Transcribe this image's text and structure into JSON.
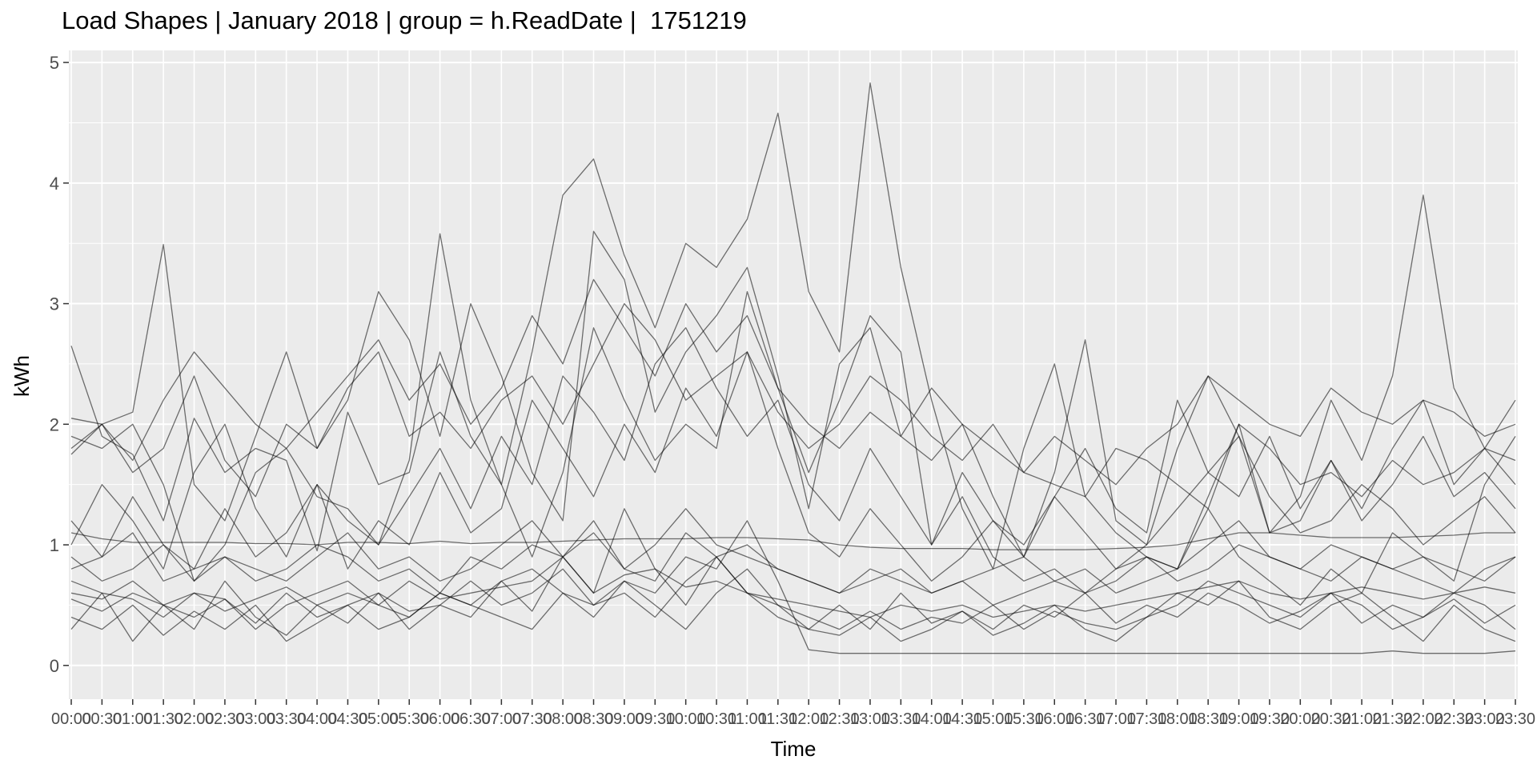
{
  "chart_data": {
    "type": "line",
    "title": "Load Shapes | January 2018 | group = h.ReadDate |  1751219",
    "xlabel": "Time",
    "ylabel": "kWh",
    "ylim": [
      -0.28,
      5.1
    ],
    "yticks": [
      0,
      1,
      2,
      3,
      4,
      5
    ],
    "grid": true,
    "legend": "none",
    "line_color": "#000000",
    "line_opacity": 0.55,
    "panel_color": "#EBEBEB",
    "grid_color": "#FFFFFF",
    "x_tick_labels": [
      "00:00",
      "00:30",
      "01:00",
      "01:30",
      "02:00",
      "02:30",
      "03:00",
      "03:30",
      "04:00",
      "04:30",
      "05:00",
      "05:30",
      "06:00",
      "06:30",
      "07:00",
      "07:30",
      "08:00",
      "08:30",
      "09:00",
      "09:30",
      "10:00",
      "10:30",
      "11:00",
      "11:30",
      "12:00",
      "12:30",
      "13:00",
      "13:30",
      "14:00",
      "14:30",
      "15:00",
      "15:30",
      "16:00",
      "16:30",
      "17:00",
      "17:30",
      "18:00",
      "18:30",
      "19:00",
      "19:30",
      "20:00",
      "20:30",
      "21:00",
      "21:30",
      "22:00",
      "22:30",
      "23:00",
      "23:30"
    ],
    "series": [
      {
        "values": [
          2.65,
          1.9,
          1.75,
          1.2,
          2.05,
          1.6,
          1.8,
          1.7,
          0.95,
          2.1,
          1.5,
          1.6,
          2.6,
          1.9,
          1.5,
          0.9,
          1.6,
          2.8,
          2.2,
          1.7,
          2.0,
          1.8,
          3.1,
          2.3,
          1.6,
          2.2,
          2.9,
          2.6,
          1.0,
          1.4,
          0.9,
          0.7,
          0.8,
          0.6,
          0.7,
          0.9,
          0.8,
          1.3,
          0.9,
          0.7,
          0.5,
          0.8,
          0.6,
          1.1,
          0.9,
          0.7,
          1.5,
          1.9
        ]
      },
      {
        "values": [
          2.05,
          2.0,
          2.1,
          3.49,
          1.5,
          1.2,
          1.9,
          2.6,
          1.8,
          2.2,
          3.1,
          2.7,
          1.9,
          3.0,
          2.4,
          1.6,
          1.2,
          3.6,
          3.2,
          2.1,
          2.6,
          2.9,
          3.3,
          2.4,
          1.3,
          2.5,
          2.8,
          1.9,
          2.3,
          2.0,
          1.4,
          0.9,
          1.6,
          2.7,
          1.2,
          1.0,
          1.8,
          2.4,
          1.9,
          1.1,
          1.4,
          2.2,
          1.7,
          2.4,
          3.9,
          2.3,
          1.8,
          1.5
        ]
      },
      {
        "values": [
          1.9,
          1.8,
          2.0,
          1.5,
          0.7,
          1.0,
          1.6,
          1.8,
          1.4,
          1.3,
          1.0,
          1.7,
          3.58,
          2.2,
          1.5,
          2.6,
          3.9,
          4.2,
          3.4,
          2.8,
          3.5,
          3.3,
          3.7,
          4.58,
          3.1,
          2.6,
          4.83,
          3.3,
          2.2,
          1.3,
          0.8,
          1.8,
          2.5,
          1.4,
          1.1,
          0.9,
          0.8,
          1.4,
          2.0,
          1.1,
          1.2,
          1.7,
          1.3,
          1.8,
          2.2,
          1.5,
          1.8,
          2.2
        ]
      },
      {
        "values": [
          1.1,
          1.05,
          1.02,
          1.02,
          1.02,
          1.02,
          1.01,
          1.01,
          1.0,
          1.02,
          1.02,
          1.01,
          1.03,
          1.01,
          1.02,
          1.02,
          1.03,
          1.04,
          1.05,
          1.05,
          1.05,
          1.06,
          1.06,
          1.05,
          1.04,
          1.0,
          0.98,
          0.97,
          0.97,
          0.97,
          0.96,
          0.96,
          0.96,
          0.96,
          0.97,
          0.98,
          1.0,
          1.05,
          1.1,
          1.1,
          1.08,
          1.06,
          1.06,
          1.06,
          1.07,
          1.08,
          1.1,
          1.1
        ]
      },
      {
        "values": [
          0.7,
          0.6,
          0.55,
          0.4,
          0.6,
          0.55,
          0.3,
          0.5,
          0.6,
          0.7,
          0.5,
          0.4,
          0.6,
          0.5,
          0.7,
          0.8,
          0.6,
          0.5,
          0.7,
          0.6,
          0.9,
          0.8,
          1.2,
          0.7,
          0.13,
          0.1,
          0.1,
          0.1,
          0.1,
          0.1,
          0.1,
          0.1,
          0.1,
          0.1,
          0.1,
          0.1,
          0.1,
          0.1,
          0.1,
          0.1,
          0.1,
          0.1,
          0.1,
          0.12,
          0.1,
          0.1,
          0.1,
          0.12
        ]
      },
      {
        "values": [
          0.55,
          0.45,
          0.6,
          0.5,
          0.4,
          0.55,
          0.35,
          0.6,
          0.4,
          0.5,
          0.6,
          0.45,
          0.5,
          0.7,
          0.5,
          0.6,
          0.8,
          0.5,
          0.6,
          0.4,
          0.7,
          0.9,
          0.6,
          0.5,
          0.4,
          0.3,
          0.45,
          0.3,
          0.4,
          0.35,
          0.5,
          0.3,
          0.45,
          0.35,
          0.3,
          0.4,
          0.5,
          0.7,
          0.6,
          0.5,
          0.4,
          0.6,
          0.5,
          0.3,
          0.4,
          0.6,
          0.5,
          0.3
        ]
      },
      {
        "values": [
          0.4,
          0.3,
          0.5,
          0.25,
          0.45,
          0.3,
          0.5,
          0.2,
          0.35,
          0.5,
          0.3,
          0.4,
          0.6,
          0.5,
          0.4,
          0.3,
          0.6,
          0.4,
          0.7,
          0.5,
          0.3,
          0.6,
          0.8,
          0.5,
          0.3,
          0.25,
          0.4,
          0.2,
          0.3,
          0.45,
          0.25,
          0.35,
          0.5,
          0.3,
          0.2,
          0.4,
          0.6,
          0.5,
          0.7,
          0.4,
          0.3,
          0.5,
          0.6,
          0.4,
          0.2,
          0.5,
          0.3,
          0.2
        ]
      },
      {
        "values": [
          1.75,
          2.0,
          1.6,
          1.8,
          2.4,
          1.7,
          1.4,
          2.0,
          1.8,
          2.3,
          2.6,
          1.9,
          2.1,
          1.8,
          2.2,
          2.4,
          2.0,
          2.5,
          3.0,
          2.7,
          2.2,
          2.4,
          2.6,
          2.1,
          1.8,
          2.0,
          2.4,
          2.2,
          1.9,
          1.7,
          2.0,
          1.6,
          1.5,
          1.4,
          1.8,
          1.7,
          1.5,
          1.3,
          2.0,
          1.8,
          1.5,
          1.6,
          1.4,
          1.7,
          1.5,
          1.6,
          1.8,
          1.7
        ]
      },
      {
        "values": [
          0.8,
          0.9,
          1.1,
          0.7,
          0.8,
          0.9,
          0.7,
          0.8,
          1.0,
          0.9,
          0.7,
          0.8,
          0.6,
          0.9,
          0.8,
          1.0,
          0.9,
          1.2,
          0.8,
          0.7,
          1.1,
          0.9,
          1.0,
          0.8,
          0.7,
          0.6,
          0.8,
          0.7,
          0.6,
          0.7,
          0.5,
          0.6,
          0.7,
          0.8,
          0.6,
          0.7,
          0.8,
          1.0,
          1.2,
          0.9,
          0.8,
          0.7,
          0.9,
          0.8,
          0.7,
          0.6,
          0.8,
          0.9
        ]
      },
      {
        "values": [
          1.0,
          1.5,
          1.2,
          0.8,
          1.6,
          2.0,
          1.3,
          0.9,
          1.5,
          1.2,
          1.0,
          1.4,
          1.8,
          1.3,
          1.9,
          1.5,
          2.4,
          2.1,
          1.7,
          2.5,
          2.8,
          2.3,
          1.9,
          2.2,
          1.5,
          1.2,
          1.8,
          1.4,
          1.0,
          1.6,
          1.2,
          0.9,
          1.4,
          1.8,
          1.3,
          1.1,
          2.2,
          1.6,
          1.4,
          1.9,
          1.3,
          1.7,
          1.2,
          1.5,
          1.9,
          1.4,
          1.6,
          1.3
        ]
      },
      {
        "values": [
          0.6,
          0.55,
          0.7,
          0.5,
          0.6,
          0.45,
          0.55,
          0.65,
          0.5,
          0.6,
          0.5,
          0.7,
          0.55,
          0.6,
          0.65,
          0.7,
          0.9,
          0.6,
          0.75,
          0.8,
          0.65,
          0.7,
          0.6,
          0.55,
          0.5,
          0.45,
          0.4,
          0.5,
          0.45,
          0.5,
          0.4,
          0.45,
          0.5,
          0.45,
          0.5,
          0.55,
          0.6,
          0.65,
          0.7,
          0.6,
          0.55,
          0.6,
          0.65,
          0.6,
          0.55,
          0.6,
          0.65,
          0.6
        ]
      },
      {
        "values": [
          1.2,
          0.9,
          1.4,
          1.0,
          0.8,
          1.3,
          0.9,
          1.1,
          1.5,
          0.8,
          1.2,
          1.0,
          1.6,
          1.1,
          1.3,
          2.2,
          1.8,
          1.4,
          2.0,
          1.6,
          2.3,
          1.9,
          2.6,
          1.8,
          1.1,
          0.9,
          1.3,
          1.0,
          0.7,
          0.9,
          1.2,
          1.0,
          1.4,
          1.1,
          0.8,
          1.0,
          1.3,
          1.6,
          1.9,
          1.4,
          1.1,
          1.2,
          1.5,
          1.3,
          1.0,
          1.2,
          1.4,
          1.1
        ]
      },
      {
        "values": [
          0.3,
          0.6,
          0.2,
          0.5,
          0.3,
          0.7,
          0.4,
          0.25,
          0.5,
          0.35,
          0.6,
          0.3,
          0.5,
          0.4,
          0.7,
          0.45,
          0.9,
          0.6,
          1.3,
          0.8,
          0.5,
          0.9,
          0.6,
          0.4,
          0.3,
          0.5,
          0.3,
          0.6,
          0.35,
          0.45,
          0.3,
          0.5,
          0.4,
          0.6,
          0.35,
          0.5,
          0.4,
          0.6,
          0.5,
          0.35,
          0.45,
          0.6,
          0.35,
          0.5,
          0.4,
          0.55,
          0.35,
          0.5
        ]
      },
      {
        "values": [
          0.9,
          0.7,
          0.8,
          1.0,
          0.7,
          0.9,
          0.8,
          0.7,
          0.9,
          1.1,
          0.8,
          0.9,
          0.7,
          0.8,
          1.0,
          1.2,
          0.9,
          1.1,
          0.8,
          1.0,
          1.3,
          1.0,
          0.9,
          0.8,
          0.7,
          0.6,
          0.7,
          0.8,
          0.6,
          0.7,
          0.8,
          0.9,
          0.7,
          0.6,
          0.8,
          0.9,
          0.7,
          0.8,
          1.0,
          0.9,
          0.8,
          1.0,
          0.9,
          0.8,
          0.9,
          0.8,
          0.7,
          0.9
        ]
      },
      {
        "values": [
          1.8,
          2.0,
          1.7,
          2.2,
          2.6,
          2.3,
          2.0,
          1.8,
          2.1,
          2.4,
          2.7,
          2.2,
          2.5,
          2.0,
          2.3,
          2.9,
          2.5,
          3.2,
          2.8,
          2.4,
          3.0,
          2.6,
          2.9,
          2.3,
          2.0,
          1.8,
          2.1,
          1.9,
          1.7,
          2.0,
          1.8,
          1.6,
          1.9,
          1.7,
          1.5,
          1.8,
          2.0,
          2.4,
          2.2,
          2.0,
          1.9,
          2.3,
          2.1,
          2.0,
          2.2,
          2.1,
          1.9,
          2.0
        ]
      }
    ]
  }
}
